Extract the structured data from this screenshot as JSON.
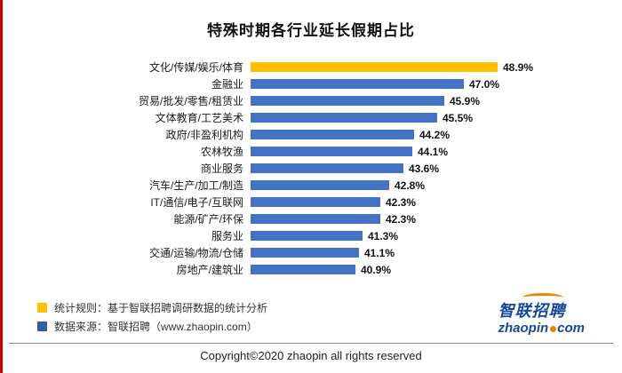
{
  "page": {
    "title": "特殊时期各行业延长假期占比",
    "copyright": "Copyright©2020 zhaopin all rights reserved"
  },
  "chart_data": {
    "type": "bar",
    "orientation": "horizontal",
    "title": "特殊时期各行业延长假期占比",
    "categories": [
      "文化/传媒/娱乐/体育",
      "金融业",
      "贸易/批发/零售/租赁业",
      "文体教育/工艺美术",
      "政府/非盈利机构",
      "农林牧渔",
      "商业服务",
      "汽车/生产/加工/制造",
      "IT/通信/电子/互联网",
      "能源/矿产/环保",
      "服务业",
      "交通/运输/物流/仓储",
      "房地产/建筑业"
    ],
    "values": [
      48.9,
      47.0,
      45.9,
      45.5,
      44.2,
      44.1,
      43.6,
      42.8,
      42.3,
      42.3,
      41.3,
      41.1,
      40.9
    ],
    "value_labels": [
      "48.9%",
      "47.0%",
      "45.9%",
      "45.5%",
      "44.2%",
      "44.1%",
      "43.6%",
      "42.8%",
      "42.3%",
      "42.3%",
      "41.3%",
      "41.1%",
      "40.9%"
    ],
    "xlabel": "",
    "ylabel": "",
    "xlim": [
      35,
      49.5
    ],
    "grid": false,
    "legend_position": "bottom-left",
    "highlight_index": 0,
    "highlight_color": "#ffc000",
    "bar_color": "#4473c5"
  },
  "legend": {
    "items": [
      {
        "color": "#ffc000",
        "label": "统计规则：基于智联招聘调研数据的统计分析"
      },
      {
        "color": "#2e5fa3",
        "label": "数据来源：智联招聘（www.zhaopin.com）"
      }
    ]
  },
  "logo": {
    "cn": "智联招聘",
    "en_left": "zhaopin",
    "en_right": "com"
  }
}
